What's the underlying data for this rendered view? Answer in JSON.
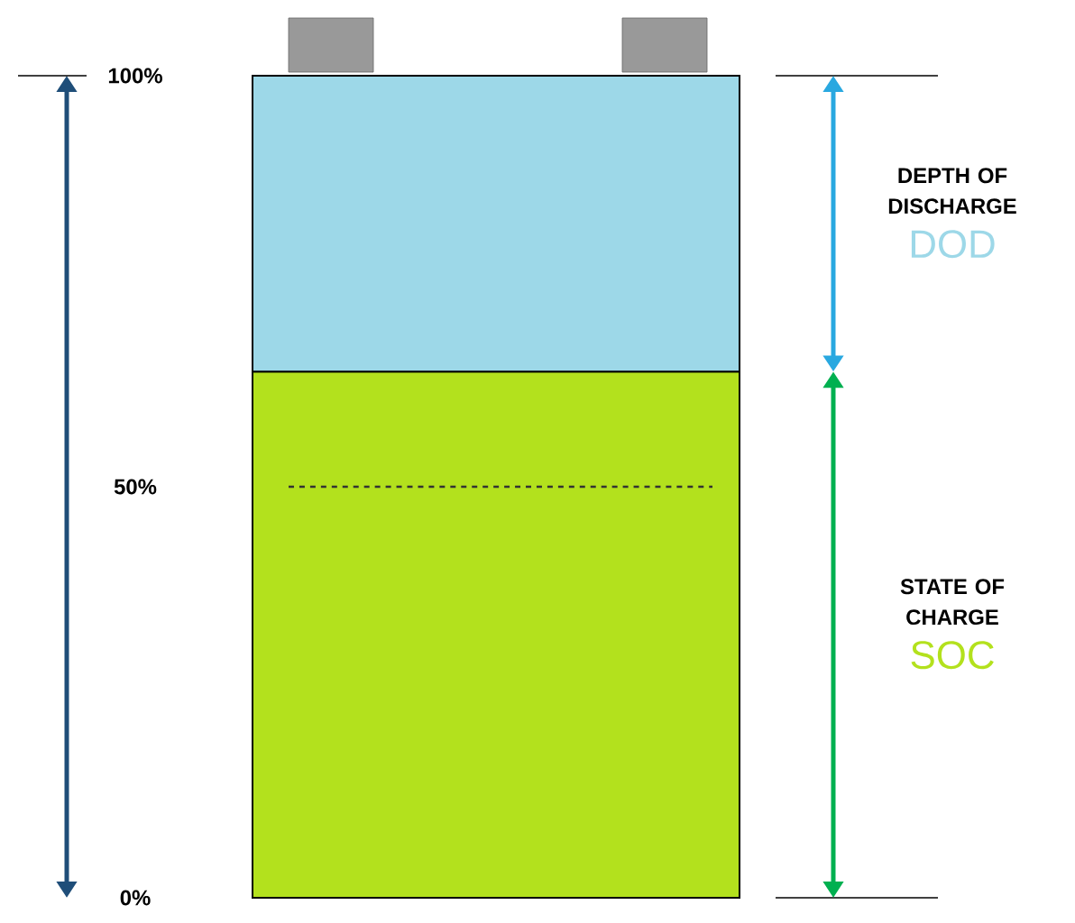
{
  "chart_data": {
    "type": "bar",
    "stacked": true,
    "categories": [
      null
    ],
    "series": [
      {
        "name": "SOC",
        "color": "#b3e11d",
        "values": [
          64
        ]
      },
      {
        "name": "DOD",
        "color": "#9dd8e8",
        "values": [
          36
        ]
      }
    ],
    "ylim": [
      0,
      100
    ],
    "yticks": [
      {
        "value": 0,
        "label": "0%"
      },
      {
        "value": 50,
        "label": "50%"
      },
      {
        "value": 100,
        "label": "100%"
      }
    ],
    "ref_lines": [
      {
        "axis": "y",
        "value": 50,
        "line_style": "dashed",
        "color": "#333333"
      }
    ],
    "annotations": [
      "STATE OF CHARGE",
      "DEPTH OF DISCHARGE"
    ],
    "legend": false
  }
}
